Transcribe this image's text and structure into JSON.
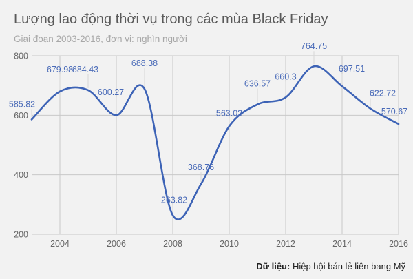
{
  "header": {
    "title": "Lượng lao động thời vụ trong các mùa Black Friday",
    "subtitle": "Giai đoạn 2003-2016, đơn vị: nghìn người"
  },
  "footer": {
    "source_label": "Dữ liệu:",
    "source_text": " Hiệp hội bán lẻ liên bang Mỹ"
  },
  "colors": {
    "background": "#f2f2f2",
    "line": "#3d63b6",
    "label": "#4a6bb8",
    "grid": "#c8c8c8"
  },
  "chart_data": {
    "type": "line",
    "title": "Lượng lao động thời vụ trong các mùa Black Friday",
    "subtitle": "Giai đoạn 2003-2016, đơn vị: nghìn người",
    "xlabel": "",
    "ylabel": "",
    "x": [
      2003,
      2004,
      2005,
      2006,
      2007,
      2008,
      2009,
      2010,
      2011,
      2012,
      2013,
      2014,
      2015,
      2016
    ],
    "series": [
      {
        "name": "Lao động thời vụ (nghìn người)",
        "values": [
          585.82,
          679.98,
          684.43,
          600.27,
          688.38,
          263.82,
          368.76,
          563.02,
          636.57,
          660.3,
          764.75,
          697.51,
          622.72,
          570.67
        ],
        "labels": [
          "585.82",
          "679.98",
          "684.43",
          "600.27",
          "688.38",
          "263.82",
          "368.76",
          "563.02",
          "636.57",
          "660.3",
          "764.75",
          "697.51",
          "622.72",
          "570.67"
        ]
      }
    ],
    "xlim": [
      2003,
      2016
    ],
    "ylim": [
      200,
      800
    ],
    "yticks": [
      "800",
      "600",
      "400",
      "200"
    ],
    "xticks": [
      "2004",
      "2006",
      "2008",
      "2010",
      "2012",
      "2014",
      "2016"
    ],
    "grid": true,
    "smooth": true,
    "legend": "none",
    "source": "Dữ liệu: Hiệp hội bán lẻ liên bang Mỹ"
  }
}
